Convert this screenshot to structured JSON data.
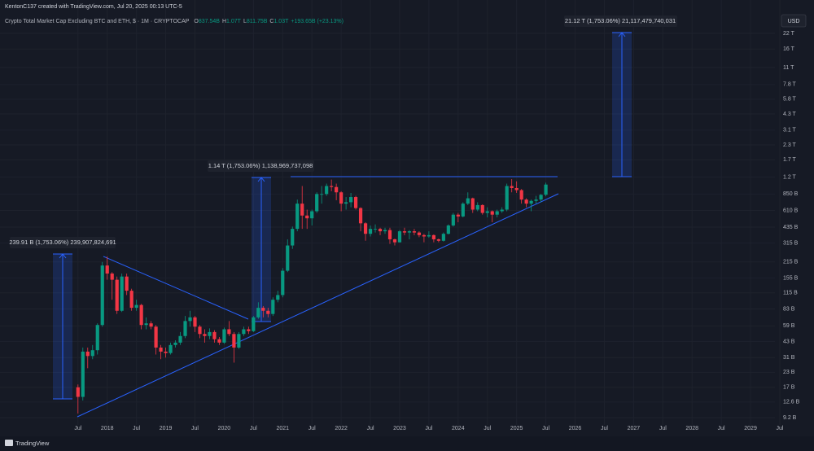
{
  "watermark": "KentonC137 created with TradingView.com, Jul 20, 2025 00:13 UTC-5",
  "footer": "TradingView",
  "chart_data": {
    "type": "candlestick",
    "title": "Crypto Total Market Cap Excluding BTC and ETH, $ · 1M · CRYPTOCAP",
    "ohlc_labels": [
      {
        "key": "O",
        "text": "837.54B"
      },
      {
        "key": "H",
        "text": "1.07T"
      },
      {
        "key": "L",
        "text": "811.75B"
      },
      {
        "key": "C",
        "text": "1.03T"
      }
    ],
    "change_label": "+193.65B (+23.13%)",
    "currency": "USD",
    "log_scale": true,
    "grid": true,
    "up_color": "#089981",
    "down_color": "#f23645",
    "xlim": [
      "2016-03",
      "2029-06"
    ],
    "ylim": [
      7930000000.0,
      43200000000000.0
    ],
    "xticks": [
      {
        "value": "2017-07",
        "label": "Jul"
      },
      {
        "value": "2018-01",
        "label": "2018"
      },
      {
        "value": "2018-07",
        "label": "Jul"
      },
      {
        "value": "2019-01",
        "label": "2019"
      },
      {
        "value": "2019-07",
        "label": "Jul"
      },
      {
        "value": "2020-01",
        "label": "2020"
      },
      {
        "value": "2020-07",
        "label": "Jul"
      },
      {
        "value": "2021-01",
        "label": "2021"
      },
      {
        "value": "2021-07",
        "label": "Jul"
      },
      {
        "value": "2022-01",
        "label": "2022"
      },
      {
        "value": "2022-07",
        "label": "Jul"
      },
      {
        "value": "2023-01",
        "label": "2023"
      },
      {
        "value": "2023-07",
        "label": "Jul"
      },
      {
        "value": "2024-01",
        "label": "2024"
      },
      {
        "value": "2024-07",
        "label": "Jul"
      },
      {
        "value": "2025-01",
        "label": "2025"
      },
      {
        "value": "2025-07",
        "label": "Jul"
      },
      {
        "value": "2026-01",
        "label": "2026"
      },
      {
        "value": "2026-07",
        "label": "Jul"
      },
      {
        "value": "2027-01",
        "label": "2027"
      },
      {
        "value": "2027-07",
        "label": "Jul"
      },
      {
        "value": "2028-01",
        "label": "2028"
      },
      {
        "value": "2028-07",
        "label": "Jul"
      },
      {
        "value": "2029-01",
        "label": "2029"
      },
      {
        "value": "2029-07",
        "label": "Jul"
      }
    ],
    "yticks": [
      {
        "value": 9200000000.0,
        "label": "9.2 B"
      },
      {
        "value": 12600000000.0,
        "label": "12.6 B"
      },
      {
        "value": 17000000000.0,
        "label": "17 B"
      },
      {
        "value": 23000000000.0,
        "label": "23 B"
      },
      {
        "value": 31000000000.0,
        "label": "31 B"
      },
      {
        "value": 43000000000.0,
        "label": "43 B"
      },
      {
        "value": 59000000000.0,
        "label": "59 B"
      },
      {
        "value": 83000000000.0,
        "label": "83 B"
      },
      {
        "value": 115000000000.0,
        "label": "115 B"
      },
      {
        "value": 155000000000.0,
        "label": "155 B"
      },
      {
        "value": 215000000000.0,
        "label": "215 B"
      },
      {
        "value": 315000000000.0,
        "label": "315 B"
      },
      {
        "value": 435000000000.0,
        "label": "435 B"
      },
      {
        "value": 610000000000.0,
        "label": "610 B"
      },
      {
        "value": 850000000000.0,
        "label": "850 B"
      },
      {
        "value": 1200000000000.0,
        "label": "1.2 T"
      },
      {
        "value": 1700000000000.0,
        "label": "1.7 T"
      },
      {
        "value": 2300000000000.0,
        "label": "2.3 T"
      },
      {
        "value": 3100000000000.0,
        "label": "3.1 T"
      },
      {
        "value": 4300000000000.0,
        "label": "4.3 T"
      },
      {
        "value": 5800000000000.0,
        "label": "5.8 T"
      },
      {
        "value": 7800000000000.0,
        "label": "7.8 T"
      },
      {
        "value": 11000000000000.0,
        "label": "11 T"
      },
      {
        "value": 16000000000000.0,
        "label": "16 T"
      },
      {
        "value": 22000000000000.0,
        "label": "22 T"
      }
    ],
    "x": [
      "2017-07",
      "2017-08",
      "2017-09",
      "2017-10",
      "2017-11",
      "2017-12",
      "2018-01",
      "2018-02",
      "2018-03",
      "2018-04",
      "2018-05",
      "2018-06",
      "2018-07",
      "2018-08",
      "2018-09",
      "2018-10",
      "2018-11",
      "2018-12",
      "2019-01",
      "2019-02",
      "2019-03",
      "2019-04",
      "2019-05",
      "2019-06",
      "2019-07",
      "2019-08",
      "2019-09",
      "2019-10",
      "2019-11",
      "2019-12",
      "2020-01",
      "2020-02",
      "2020-03",
      "2020-04",
      "2020-05",
      "2020-06",
      "2020-07",
      "2020-08",
      "2020-09",
      "2020-10",
      "2020-11",
      "2020-12",
      "2021-01",
      "2021-02",
      "2021-03",
      "2021-04",
      "2021-05",
      "2021-06",
      "2021-07",
      "2021-08",
      "2021-09",
      "2021-10",
      "2021-11",
      "2021-12",
      "2022-01",
      "2022-02",
      "2022-03",
      "2022-04",
      "2022-05",
      "2022-06",
      "2022-07",
      "2022-08",
      "2022-09",
      "2022-10",
      "2022-11",
      "2022-12",
      "2023-01",
      "2023-02",
      "2023-03",
      "2023-04",
      "2023-05",
      "2023-06",
      "2023-07",
      "2023-08",
      "2023-09",
      "2023-10",
      "2023-11",
      "2023-12",
      "2024-01",
      "2024-02",
      "2024-03",
      "2024-04",
      "2024-05",
      "2024-06",
      "2024-07",
      "2024-08",
      "2024-09",
      "2024-10",
      "2024-11",
      "2024-12",
      "2025-01",
      "2025-02",
      "2025-03",
      "2025-04",
      "2025-05",
      "2025-06",
      "2025-07"
    ],
    "open": [
      17000000000.0,
      14000000000.0,
      35000000000.0,
      32000000000.0,
      36000000000.0,
      60000000000.0,
      200000000000.0,
      170000000000.0,
      150000000000.0,
      80000000000.0,
      160000000000.0,
      120000000000.0,
      85000000000.0,
      90000000000.0,
      60000000000.0,
      62000000000.0,
      58000000000.0,
      38000000000.0,
      35000000000.0,
      34000000000.0,
      40000000000.0,
      42000000000.0,
      48000000000.0,
      65000000000.0,
      70000000000.0,
      58000000000.0,
      50000000000.0,
      48000000000.0,
      52000000000.0,
      45000000000.0,
      42000000000.0,
      55000000000.0,
      50000000000.0,
      38000000000.0,
      50000000000.0,
      55000000000.0,
      53000000000.0,
      70000000000.0,
      85000000000.0,
      80000000000.0,
      75000000000.0,
      100000000000.0,
      110000000000.0,
      180000000000.0,
      300000000000.0,
      420000000000.0,
      700000000000.0,
      550000000000.0,
      520000000000.0,
      600000000000.0,
      850000000000.0,
      850000000000.0,
      1000000000000.0,
      980000000000.0,
      880000000000.0,
      700000000000.0,
      720000000000.0,
      800000000000.0,
      640000000000.0,
      470000000000.0,
      380000000000.0,
      420000000000.0,
      420000000000.0,
      400000000000.0,
      410000000000.0,
      340000000000.0,
      320000000000.0,
      400000000000.0,
      390000000000.0,
      400000000000.0,
      390000000000.0,
      370000000000.0,
      360000000000.0,
      370000000000.0,
      340000000000.0,
      330000000000.0,
      380000000000.0,
      450000000000.0,
      560000000000.0,
      540000000000.0,
      700000000000.0,
      780000000000.0,
      620000000000.0,
      680000000000.0,
      580000000000.0,
      600000000000.0,
      560000000000.0,
      600000000000.0,
      620000000000.0,
      1000000000000.0,
      960000000000.0,
      920000000000.0,
      760000000000.0,
      700000000000.0,
      740000000000.0,
      760000000000.0,
      837540000000.0
    ],
    "high": [
      18000000000.0,
      38000000000.0,
      38000000000.0,
      40000000000.0,
      62000000000.0,
      215000000000.0,
      240000000000.0,
      175000000000.0,
      160000000000.0,
      170000000000.0,
      170000000000.0,
      125000000000.0,
      100000000000.0,
      92000000000.0,
      70000000000.0,
      65000000000.0,
      60000000000.0,
      40000000000.0,
      38000000000.0,
      42000000000.0,
      44000000000.0,
      52000000000.0,
      72000000000.0,
      80000000000.0,
      72000000000.0,
      60000000000.0,
      55000000000.0,
      56000000000.0,
      54000000000.0,
      47000000000.0,
      57000000000.0,
      65000000000.0,
      52000000000.0,
      52000000000.0,
      58000000000.0,
      58000000000.0,
      72000000000.0,
      95000000000.0,
      88000000000.0,
      85000000000.0,
      105000000000.0,
      120000000000.0,
      190000000000.0,
      340000000000.0,
      440000000000.0,
      760000000000.0,
      1000000000000.0,
      620000000000.0,
      620000000000.0,
      880000000000.0,
      1000000000000.0,
      1050000000000.0,
      1139000000000.0,
      1050000000000.0,
      900000000000.0,
      800000000000.0,
      870000000000.0,
      820000000000.0,
      650000000000.0,
      480000000000.0,
      450000000000.0,
      460000000000.0,
      430000000000.0,
      430000000000.0,
      430000000000.0,
      345000000000.0,
      410000000000.0,
      430000000000.0,
      410000000000.0,
      420000000000.0,
      400000000000.0,
      380000000000.0,
      400000000000.0,
      375000000000.0,
      345000000000.0,
      390000000000.0,
      460000000000.0,
      580000000000.0,
      580000000000.0,
      720000000000.0,
      880000000000.0,
      790000000000.0,
      720000000000.0,
      690000000000.0,
      650000000000.0,
      610000000000.0,
      620000000000.0,
      650000000000.0,
      1050000000000.0,
      1150000000000.0,
      1100000000000.0,
      940000000000.0,
      780000000000.0,
      760000000000.0,
      820000000000.0,
      850000000000.0,
      1070000000000.0
    ],
    "low": [
      10000000000.0,
      13000000000.0,
      25000000000.0,
      30000000000.0,
      33000000000.0,
      58000000000.0,
      150000000000.0,
      100000000000.0,
      75000000000.0,
      78000000000.0,
      110000000000.0,
      80000000000.0,
      80000000000.0,
      55000000000.0,
      55000000000.0,
      55000000000.0,
      33000000000.0,
      30000000000.0,
      31000000000.0,
      33000000000.0,
      38000000000.0,
      40000000000.0,
      46000000000.0,
      58000000000.0,
      52000000000.0,
      46000000000.0,
      42000000000.0,
      45000000000.0,
      42000000000.0,
      40000000000.0,
      41000000000.0,
      48000000000.0,
      28000000000.0,
      37000000000.0,
      48000000000.0,
      50000000000.0,
      52000000000.0,
      68000000000.0,
      70000000000.0,
      70000000000.0,
      72000000000.0,
      95000000000.0,
      105000000000.0,
      175000000000.0,
      280000000000.0,
      400000000000.0,
      420000000000.0,
      420000000000.0,
      450000000000.0,
      580000000000.0,
      700000000000.0,
      820000000000.0,
      900000000000.0,
      750000000000.0,
      600000000000.0,
      620000000000.0,
      650000000000.0,
      620000000000.0,
      400000000000.0,
      330000000000.0,
      360000000000.0,
      390000000000.0,
      370000000000.0,
      380000000000.0,
      310000000000.0,
      300000000000.0,
      318000000000.0,
      370000000000.0,
      340000000000.0,
      370000000000.0,
      355000000000.0,
      320000000000.0,
      350000000000.0,
      320000000000.0,
      320000000000.0,
      325000000000.0,
      375000000000.0,
      440000000000.0,
      480000000000.0,
      530000000000.0,
      680000000000.0,
      580000000000.0,
      600000000000.0,
      560000000000.0,
      530000000000.0,
      480000000000.0,
      530000000000.0,
      580000000000.0,
      600000000000.0,
      880000000000.0,
      870000000000.0,
      700000000000.0,
      650000000000.0,
      600000000000.0,
      700000000000.0,
      720000000000.0,
      811750000000.0
    ],
    "close": [
      14000000000.0,
      35000000000.0,
      32000000000.0,
      36000000000.0,
      60000000000.0,
      200000000000.0,
      170000000000.0,
      150000000000.0,
      80000000000.0,
      160000000000.0,
      120000000000.0,
      85000000000.0,
      90000000000.0,
      60000000000.0,
      62000000000.0,
      58000000000.0,
      38000000000.0,
      35000000000.0,
      34000000000.0,
      40000000000.0,
      42000000000.0,
      48000000000.0,
      65000000000.0,
      70000000000.0,
      58000000000.0,
      50000000000.0,
      48000000000.0,
      52000000000.0,
      45000000000.0,
      42000000000.0,
      55000000000.0,
      50000000000.0,
      38000000000.0,
      50000000000.0,
      55000000000.0,
      53000000000.0,
      70000000000.0,
      85000000000.0,
      80000000000.0,
      75000000000.0,
      100000000000.0,
      110000000000.0,
      180000000000.0,
      300000000000.0,
      420000000000.0,
      700000000000.0,
      550000000000.0,
      520000000000.0,
      600000000000.0,
      850000000000.0,
      850000000000.0,
      1000000000000.0,
      980000000000.0,
      880000000000.0,
      700000000000.0,
      720000000000.0,
      800000000000.0,
      640000000000.0,
      470000000000.0,
      380000000000.0,
      420000000000.0,
      420000000000.0,
      400000000000.0,
      410000000000.0,
      340000000000.0,
      320000000000.0,
      400000000000.0,
      390000000000.0,
      400000000000.0,
      390000000000.0,
      370000000000.0,
      360000000000.0,
      370000000000.0,
      340000000000.0,
      330000000000.0,
      380000000000.0,
      450000000000.0,
      560000000000.0,
      540000000000.0,
      700000000000.0,
      780000000000.0,
      620000000000.0,
      680000000000.0,
      580000000000.0,
      600000000000.0,
      560000000000.0,
      600000000000.0,
      620000000000.0,
      1000000000000.0,
      960000000000.0,
      920000000000.0,
      760000000000.0,
      700000000000.0,
      740000000000.0,
      760000000000.0,
      836350000000.0,
      1030000000000.0
    ],
    "annotations": [
      {
        "text": "239.91 B (1,753.06%) 239,907,824,691"
      },
      {
        "text": "1.14 T (1,753.06%) 1,138,969,737,098"
      },
      {
        "text": "21.12 T (1,753.06%) 21,117,479,740,031"
      }
    ]
  }
}
